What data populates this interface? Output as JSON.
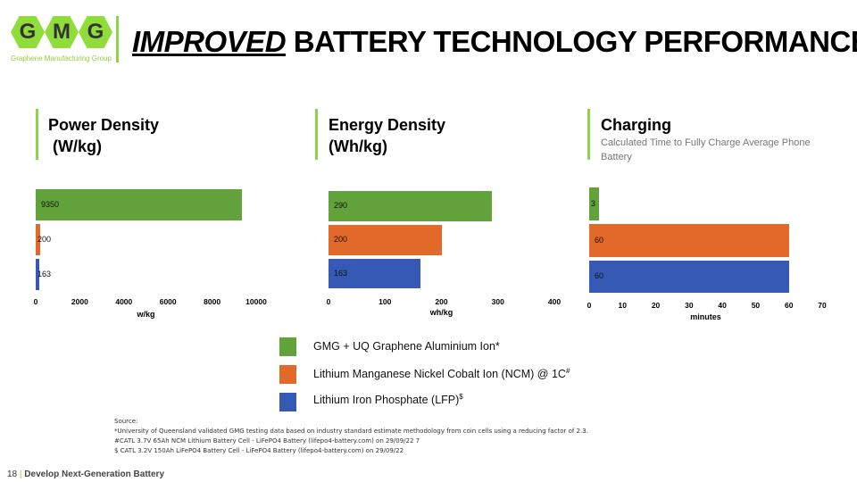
{
  "header": {
    "logo_letters": [
      "G",
      "M",
      "G"
    ],
    "logo_subtitle": "Graphene Manufacturing Group",
    "title_emphasis": "IMPROVED",
    "title_rest": " BATTERY TECHNOLOGY PERFORMANCE"
  },
  "colors": {
    "green": "#62a23a",
    "orange": "#e3692a",
    "blue": "#3759b6",
    "accent": "#8fd14a"
  },
  "chart_data": [
    {
      "type": "bar",
      "orientation": "horizontal",
      "title": "Power Density\n (W/kg)",
      "xlabel": "w/kg",
      "xlim": [
        0,
        10000
      ],
      "ticks": [
        "0",
        "2000",
        "4000",
        "6000",
        "8000",
        "10000"
      ],
      "values": [
        9350,
        200,
        163
      ],
      "labels": [
        "9350",
        "200",
        "163"
      ]
    },
    {
      "type": "bar",
      "orientation": "horizontal",
      "title": "Energy Density\n(Wh/kg)",
      "xlabel": "wh/kg",
      "xlim": [
        0,
        400
      ],
      "ticks": [
        "0",
        "100",
        "200",
        "300",
        "400"
      ],
      "values": [
        290,
        200,
        163
      ],
      "labels": [
        "290",
        "200",
        "163"
      ]
    },
    {
      "type": "bar",
      "orientation": "horizontal",
      "title": "Charging",
      "subtitle": "Calculated Time to Fully Charge Average Phone Battery",
      "xlabel": "minutes",
      "xlim": [
        0,
        70
      ],
      "ticks": [
        "0",
        "10",
        "20",
        "30",
        "40",
        "50",
        "60",
        "70"
      ],
      "values": [
        3,
        60,
        60
      ],
      "labels": [
        "3",
        "60",
        "60"
      ]
    }
  ],
  "legend": [
    {
      "label": "GMG + UQ Graphene Aluminium Ion*",
      "color": "#62a23a"
    },
    {
      "label": "Lithium Manganese Nickel Cobalt Ion (NCM) @ 1C",
      "sup": "#",
      "color": "#e3692a"
    },
    {
      "label": "Lithium Iron Phosphate (LFP)",
      "sup": "$",
      "color": "#3759b6"
    }
  ],
  "source": {
    "heading": "Source:",
    "lines": [
      "*University of Queensland validated GMG testing data based on industry standard estimate methodology from coin cells using a reducing factor of 2.3.",
      "#CATL 3.7V 65Ah NCM Lithium Battery Cell - LiFePO4 Battery (lifepo4-battery.com) on 29/09/22 7",
      "$ CATL 3.2V 150Ah LiFePO4 Battery Cell - LiFePO4 Battery (lifepo4-battery.com) on 29/09/22"
    ]
  },
  "footer": {
    "page": "18",
    "sep": "|",
    "text": "Develop Next-Generation Battery"
  }
}
